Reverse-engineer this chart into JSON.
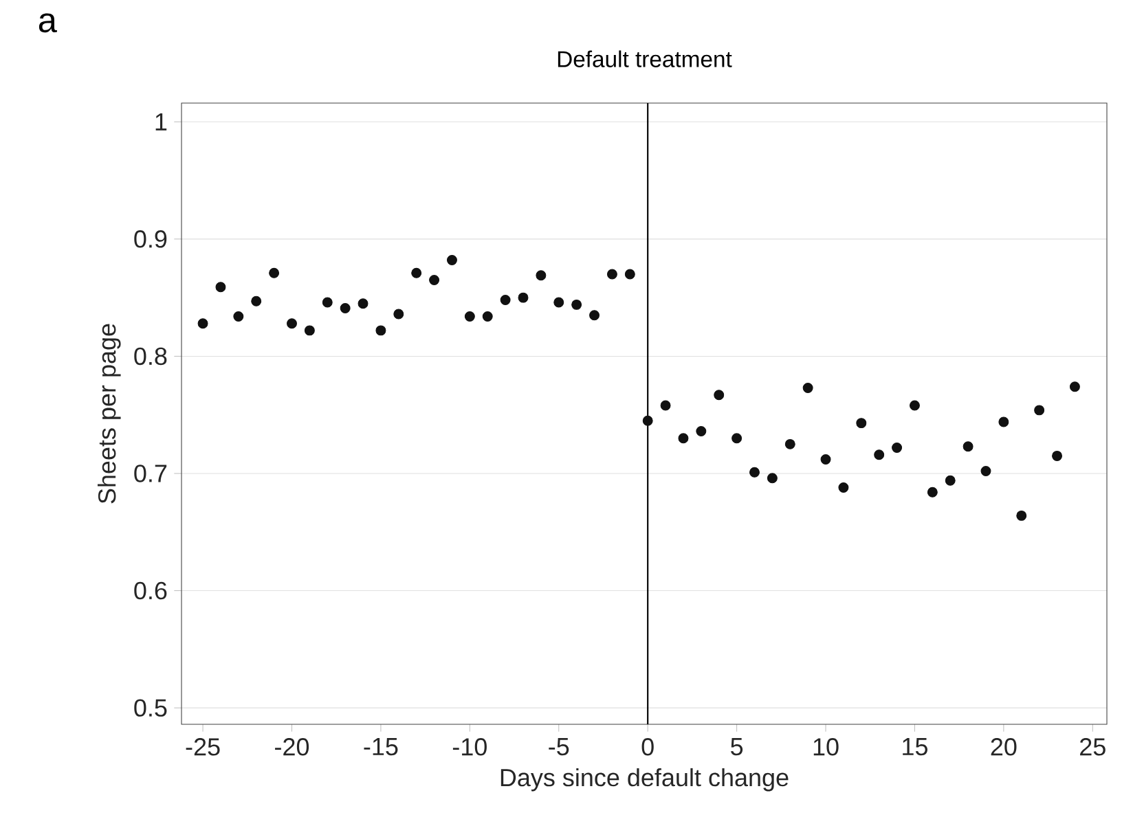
{
  "chart_data": {
    "type": "scatter",
    "title": "Default treatment",
    "xlabel": "Days since default change",
    "ylabel": "Sheets per page",
    "annotations": [
      "a"
    ],
    "series": [
      {
        "color": "#111111",
        "x": [
          -25,
          -24,
          -23,
          -22,
          -21,
          -20,
          -19,
          -18,
          -17,
          -16,
          -15,
          -14,
          -13,
          -12,
          -11,
          -10,
          -9,
          -8,
          -7,
          -6,
          -5,
          -4,
          -3,
          -2,
          -1,
          0,
          1,
          2,
          3,
          4,
          5,
          6,
          7,
          8,
          9,
          10,
          11,
          12,
          13,
          14,
          15,
          16,
          17,
          18,
          19,
          20,
          21,
          22,
          23,
          24
        ],
        "values": [
          0.828,
          0.859,
          0.834,
          0.847,
          0.871,
          0.828,
          0.822,
          0.846,
          0.841,
          0.845,
          0.822,
          0.836,
          0.871,
          0.865,
          0.882,
          0.834,
          0.834,
          0.848,
          0.85,
          0.869,
          0.846,
          0.844,
          0.835,
          0.87,
          0.87,
          0.745,
          0.758,
          0.73,
          0.736,
          0.767,
          0.73,
          0.701,
          0.696,
          0.725,
          0.773,
          0.712,
          0.688,
          0.743,
          0.716,
          0.722,
          0.758,
          0.684,
          0.694,
          0.723,
          0.702,
          0.744,
          0.664,
          0.754,
          0.715,
          0.774
        ]
      }
    ],
    "xlim": [
      -26.2,
      25.8
    ],
    "ylim": [
      0.486,
      1.016
    ],
    "xticks": [
      -25,
      -20,
      -15,
      -10,
      -5,
      0,
      5,
      10,
      15,
      20,
      25
    ],
    "yticks": [
      0.5,
      0.6,
      0.7,
      0.8,
      0.9,
      1
    ],
    "grid": "y",
    "marker": "circle",
    "ref_lines": [
      {
        "axis": "x",
        "value": 0,
        "color": "#000000"
      }
    ]
  }
}
